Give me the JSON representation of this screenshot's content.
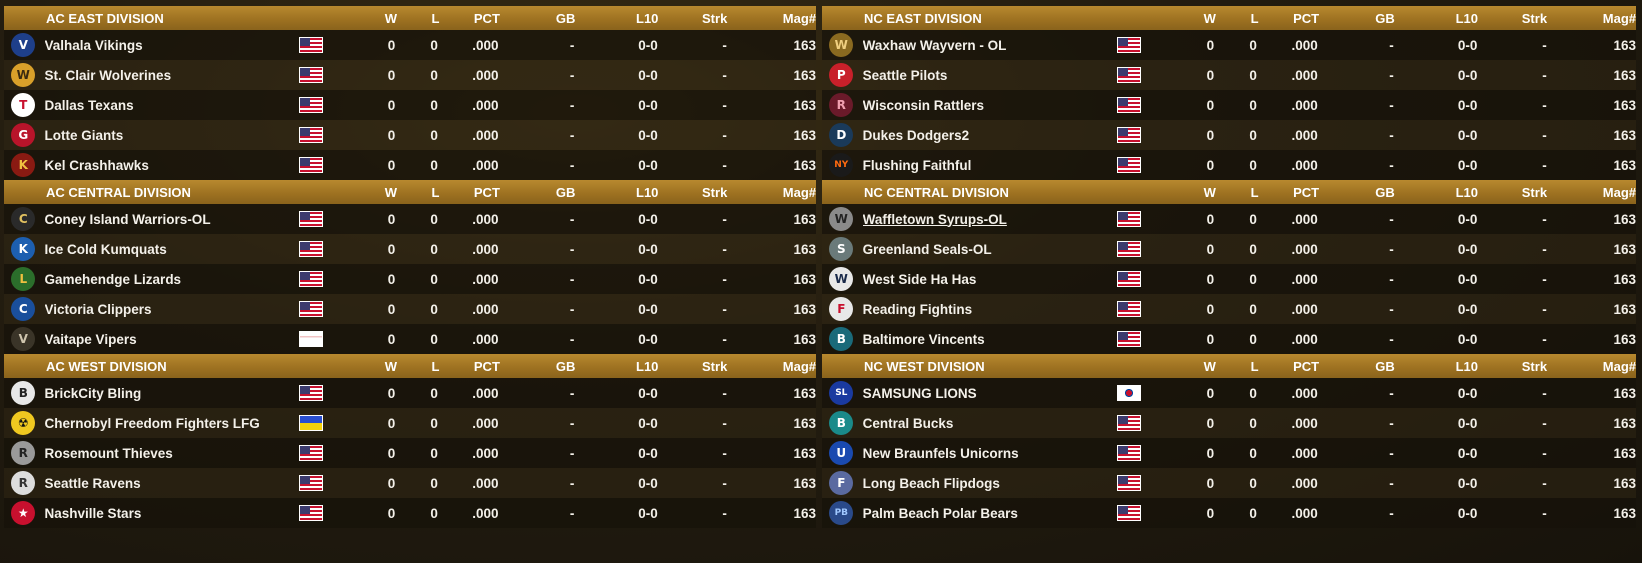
{
  "columns": {
    "w": "W",
    "l": "L",
    "pct": "PCT",
    "gb": "GB",
    "l10": "L10",
    "strk": "Strk",
    "mag": "Mag#"
  },
  "left": [
    {
      "title": "AC EAST DIVISION",
      "teams": [
        {
          "name": "Valhala Vikings",
          "flag": "us",
          "logo": "V",
          "logo_bg": "#1e3f8a",
          "logo_fg": "#ffffff",
          "w": "0",
          "l": "0",
          "pct": ".000",
          "gb": "-",
          "l10": "0-0",
          "strk": "-",
          "mag": "163"
        },
        {
          "name": "St. Clair Wolverines",
          "flag": "us",
          "logo": "W",
          "logo_bg": "#d9a02a",
          "logo_fg": "#3a2a10",
          "w": "0",
          "l": "0",
          "pct": ".000",
          "gb": "-",
          "l10": "0-0",
          "strk": "-",
          "mag": "163"
        },
        {
          "name": "Dallas Texans",
          "flag": "us",
          "logo": "T",
          "logo_bg": "#ffffff",
          "logo_fg": "#c8102e",
          "w": "0",
          "l": "0",
          "pct": ".000",
          "gb": "-",
          "l10": "0-0",
          "strk": "-",
          "mag": "163"
        },
        {
          "name": "Lotte Giants",
          "flag": "us",
          "logo": "G",
          "logo_bg": "#b8142a",
          "logo_fg": "#ffffff",
          "w": "0",
          "l": "0",
          "pct": ".000",
          "gb": "-",
          "l10": "0-0",
          "strk": "-",
          "mag": "163"
        },
        {
          "name": "Kel Crashhawks",
          "flag": "us",
          "logo": "K",
          "logo_bg": "#8a1a12",
          "logo_fg": "#f0c040",
          "w": "0",
          "l": "0",
          "pct": ".000",
          "gb": "-",
          "l10": "0-0",
          "strk": "-",
          "mag": "163"
        }
      ]
    },
    {
      "title": "AC CENTRAL DIVISION",
      "teams": [
        {
          "name": "Coney Island Warriors-OL",
          "flag": "us",
          "logo": "C",
          "logo_bg": "#2a2a2a",
          "logo_fg": "#e0c060",
          "w": "0",
          "l": "0",
          "pct": ".000",
          "gb": "-",
          "l10": "0-0",
          "strk": "-",
          "mag": "163"
        },
        {
          "name": "Ice Cold Kumquats",
          "flag": "us",
          "logo": "K",
          "logo_bg": "#1d5fb0",
          "logo_fg": "#ffffff",
          "w": "0",
          "l": "0",
          "pct": ".000",
          "gb": "-",
          "l10": "0-0",
          "strk": "-",
          "mag": "163"
        },
        {
          "name": "Gamehendge Lizards",
          "flag": "us",
          "logo": "L",
          "logo_bg": "#2b6e2b",
          "logo_fg": "#f0c040",
          "w": "0",
          "l": "0",
          "pct": ".000",
          "gb": "-",
          "l10": "0-0",
          "strk": "-",
          "mag": "163"
        },
        {
          "name": "Victoria Clippers",
          "flag": "us",
          "logo": "C",
          "logo_bg": "#1a4f9c",
          "logo_fg": "#ffffff",
          "w": "0",
          "l": "0",
          "pct": ".000",
          "gb": "-",
          "l10": "0-0",
          "strk": "-",
          "mag": "163"
        },
        {
          "name": "Vaitape Vipers",
          "flag": "blank",
          "logo": "V",
          "logo_bg": "#3a3428",
          "logo_fg": "#cfc5ae",
          "w": "0",
          "l": "0",
          "pct": ".000",
          "gb": "-",
          "l10": "0-0",
          "strk": "-",
          "mag": "163"
        }
      ]
    },
    {
      "title": "AC WEST DIVISION",
      "teams": [
        {
          "name": "BrickCity Bling",
          "flag": "us",
          "logo": "B",
          "logo_bg": "#e8e8e8",
          "logo_fg": "#222222",
          "w": "0",
          "l": "0",
          "pct": ".000",
          "gb": "-",
          "l10": "0-0",
          "strk": "-",
          "mag": "163"
        },
        {
          "name": "Chernobyl Freedom Fighters LFG",
          "flag": "ua",
          "logo": "☢",
          "logo_bg": "#f0c820",
          "logo_fg": "#111111",
          "w": "0",
          "l": "0",
          "pct": ".000",
          "gb": "-",
          "l10": "0-0",
          "strk": "-",
          "mag": "163"
        },
        {
          "name": "Rosemount Thieves",
          "flag": "us",
          "logo": "R",
          "logo_bg": "#9a9a9a",
          "logo_fg": "#222222",
          "w": "0",
          "l": "0",
          "pct": ".000",
          "gb": "-",
          "l10": "0-0",
          "strk": "-",
          "mag": "163"
        },
        {
          "name": "Seattle Ravens",
          "flag": "us",
          "logo": "R",
          "logo_bg": "#dddddd",
          "logo_fg": "#333333",
          "w": "0",
          "l": "0",
          "pct": ".000",
          "gb": "-",
          "l10": "0-0",
          "strk": "-",
          "mag": "163"
        },
        {
          "name": "Nashville Stars",
          "flag": "us",
          "logo": "★",
          "logo_bg": "#c8102e",
          "logo_fg": "#ffffff",
          "w": "0",
          "l": "0",
          "pct": ".000",
          "gb": "-",
          "l10": "0-0",
          "strk": "-",
          "mag": "163"
        }
      ]
    }
  ],
  "right": [
    {
      "title": "NC EAST DIVISION",
      "teams": [
        {
          "name": "Waxhaw Wayvern - OL",
          "flag": "us",
          "logo": "W",
          "logo_bg": "#8a6a20",
          "logo_fg": "#f0d080",
          "w": "0",
          "l": "0",
          "pct": ".000",
          "gb": "-",
          "l10": "0-0",
          "strk": "-",
          "mag": "163"
        },
        {
          "name": "Seattle Pilots",
          "flag": "us",
          "logo": "P",
          "logo_bg": "#c8202a",
          "logo_fg": "#ffffff",
          "w": "0",
          "l": "0",
          "pct": ".000",
          "gb": "-",
          "l10": "0-0",
          "strk": "-",
          "mag": "163"
        },
        {
          "name": "Wisconsin Rattlers",
          "flag": "us",
          "logo": "R",
          "logo_bg": "#6a1a2a",
          "logo_fg": "#f0a0b0",
          "w": "0",
          "l": "0",
          "pct": ".000",
          "gb": "-",
          "l10": "0-0",
          "strk": "-",
          "mag": "163"
        },
        {
          "name": "Dukes Dodgers2",
          "flag": "us",
          "logo": "D",
          "logo_bg": "#1a3a5a",
          "logo_fg": "#ffffff",
          "w": "0",
          "l": "0",
          "pct": ".000",
          "gb": "-",
          "l10": "0-0",
          "strk": "-",
          "mag": "163"
        },
        {
          "name": "Flushing Faithful",
          "flag": "us",
          "logo": "NY",
          "logo_bg": "#1a1a1a",
          "logo_fg": "#ff6a10",
          "w": "0",
          "l": "0",
          "pct": ".000",
          "gb": "-",
          "l10": "0-0",
          "strk": "-",
          "mag": "163"
        }
      ]
    },
    {
      "title": "NC CENTRAL DIVISION",
      "teams": [
        {
          "name": "Waffletown Syrups-OL",
          "flag": "us",
          "logo": "W",
          "logo_bg": "#8a8a8a",
          "logo_fg": "#222222",
          "link": true,
          "w": "0",
          "l": "0",
          "pct": ".000",
          "gb": "-",
          "l10": "0-0",
          "strk": "-",
          "mag": "163"
        },
        {
          "name": "Greenland Seals-OL",
          "flag": "us",
          "logo": "S",
          "logo_bg": "#6a7a7a",
          "logo_fg": "#ffffff",
          "w": "0",
          "l": "0",
          "pct": ".000",
          "gb": "-",
          "l10": "0-0",
          "strk": "-",
          "mag": "163"
        },
        {
          "name": "West Side Ha Has",
          "flag": "us",
          "logo": "W",
          "logo_bg": "#e8e8e8",
          "logo_fg": "#1a2a4a",
          "w": "0",
          "l": "0",
          "pct": ".000",
          "gb": "-",
          "l10": "0-0",
          "strk": "-",
          "mag": "163"
        },
        {
          "name": "Reading Fightins",
          "flag": "us",
          "logo": "F",
          "logo_bg": "#e8e8e8",
          "logo_fg": "#c8102e",
          "w": "0",
          "l": "0",
          "pct": ".000",
          "gb": "-",
          "l10": "0-0",
          "strk": "-",
          "mag": "163"
        },
        {
          "name": "Baltimore Vincents",
          "flag": "us",
          "logo": "B",
          "logo_bg": "#1a6a7a",
          "logo_fg": "#ffffff",
          "w": "0",
          "l": "0",
          "pct": ".000",
          "gb": "-",
          "l10": "0-0",
          "strk": "-",
          "mag": "163"
        }
      ]
    },
    {
      "title": "NC WEST DIVISION",
      "teams": [
        {
          "name": "SAMSUNG LIONS",
          "flag": "kr",
          "logo": "SL",
          "logo_bg": "#1a3aa0",
          "logo_fg": "#ffffff",
          "w": "0",
          "l": "0",
          "pct": ".000",
          "gb": "-",
          "l10": "0-0",
          "strk": "-",
          "mag": "163"
        },
        {
          "name": "Central Bucks",
          "flag": "us",
          "logo": "B",
          "logo_bg": "#1a8a8a",
          "logo_fg": "#ffffff",
          "w": "0",
          "l": "0",
          "pct": ".000",
          "gb": "-",
          "l10": "0-0",
          "strk": "-",
          "mag": "163"
        },
        {
          "name": "New Braunfels Unicorns",
          "flag": "us",
          "logo": "U",
          "logo_bg": "#1a4ab0",
          "logo_fg": "#ffffff",
          "w": "0",
          "l": "0",
          "pct": ".000",
          "gb": "-",
          "l10": "0-0",
          "strk": "-",
          "mag": "163"
        },
        {
          "name": "Long Beach Flipdogs",
          "flag": "us",
          "logo": "F",
          "logo_bg": "#5a6aa0",
          "logo_fg": "#ffffff",
          "w": "0",
          "l": "0",
          "pct": ".000",
          "gb": "-",
          "l10": "0-0",
          "strk": "-",
          "mag": "163"
        },
        {
          "name": "Palm Beach Polar Bears",
          "flag": "us",
          "logo": "PB",
          "logo_bg": "#2a4a8a",
          "logo_fg": "#a0c8ff",
          "w": "0",
          "l": "0",
          "pct": ".000",
          "gb": "-",
          "l10": "0-0",
          "strk": "-",
          "mag": "163"
        }
      ]
    }
  ]
}
